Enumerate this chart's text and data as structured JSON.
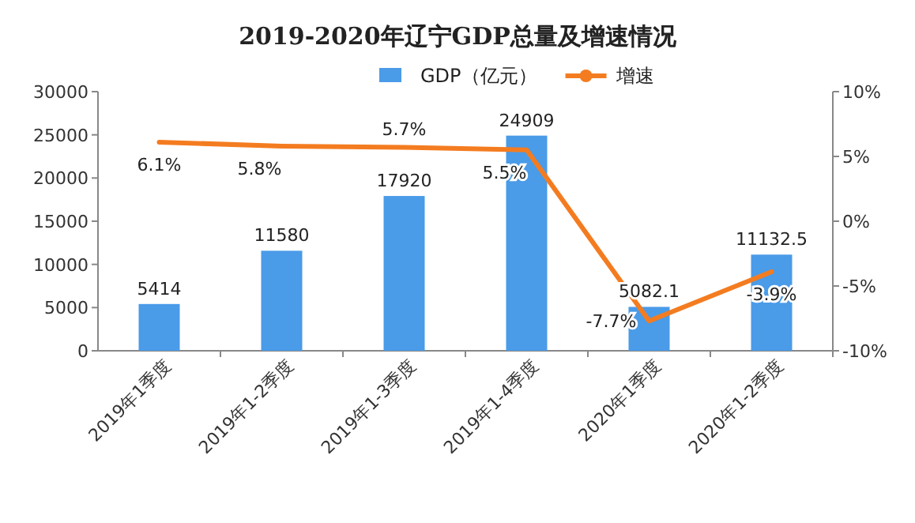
{
  "chart_data": {
    "type": "bar",
    "title": "2019-2020年辽宁GDP总量及增速情况",
    "categories": [
      "2019年1季度",
      "2019年1-2季度",
      "2019年1-3季度",
      "2019年1-4季度",
      "2020年1季度",
      "2020年1-2季度"
    ],
    "series": [
      {
        "name": "GDP（亿元）",
        "color": "#4a9be8",
        "values": [
          5414,
          11580,
          17920,
          24909,
          5082.1,
          11132.5
        ],
        "value_labels": [
          "5414",
          "11580",
          "17920",
          "24909",
          "5082.1",
          "11132.5"
        ]
      },
      {
        "name": "增速",
        "type": "line",
        "axis": "y2",
        "color": "#f47c20",
        "values": [
          6.1,
          5.8,
          5.7,
          5.5,
          -7.7,
          -3.9
        ],
        "value_labels": [
          "6.1%",
          "5.8%",
          "5.7%",
          "5.5%",
          "-7.7%",
          "-3.9%"
        ]
      }
    ],
    "ylim": [
      0,
      30000
    ],
    "yticks": [
      0,
      5000,
      10000,
      15000,
      20000,
      25000,
      30000
    ],
    "y2lim": [
      -10,
      10
    ],
    "y2ticks": [
      {
        "value": -10,
        "label": "-10%"
      },
      {
        "value": -5,
        "label": "-5%"
      },
      {
        "value": 0,
        "label": "0%"
      },
      {
        "value": 5,
        "label": "5%"
      },
      {
        "value": 10,
        "label": "10%"
      }
    ],
    "legend": "top"
  }
}
